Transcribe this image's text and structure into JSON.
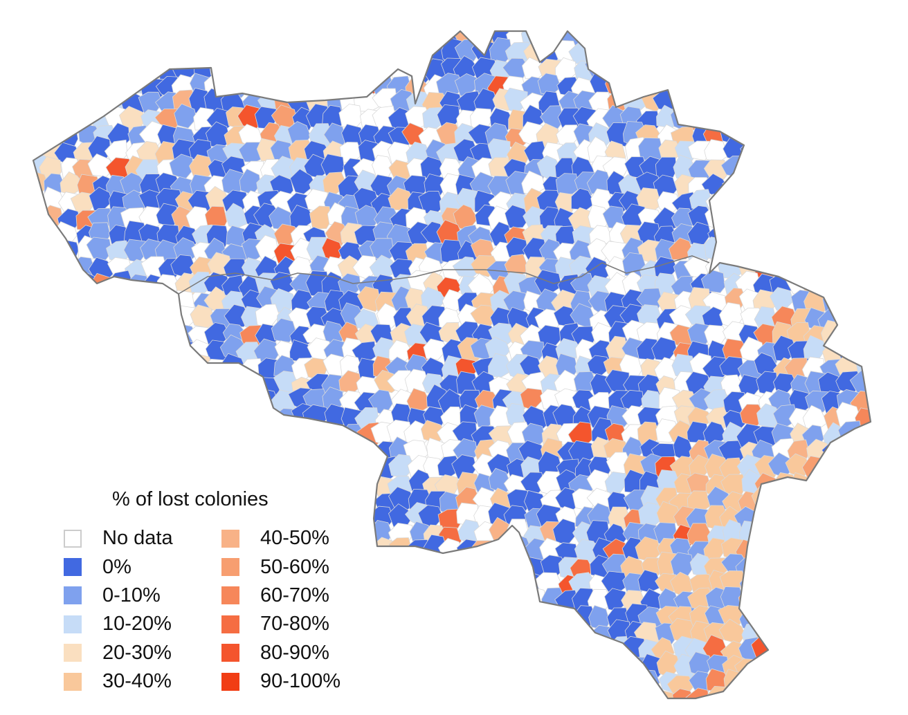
{
  "legend": {
    "title": "% of lost colonies",
    "items": [
      {
        "label": "No data",
        "color": "#ffffff"
      },
      {
        "label": "0%",
        "color": "#4169e1"
      },
      {
        "label": "0-10%",
        "color": "#7fa1ee"
      },
      {
        "label": "10-20%",
        "color": "#c6dcf7"
      },
      {
        "label": "20-30%",
        "color": "#fadfc0"
      },
      {
        "label": "30-40%",
        "color": "#f9c89b"
      },
      {
        "label": "40-50%",
        "color": "#f8b287"
      },
      {
        "label": "50-60%",
        "color": "#f79e70"
      },
      {
        "label": "60-70%",
        "color": "#f6875a"
      },
      {
        "label": "70-80%",
        "color": "#f56d42"
      },
      {
        "label": "80-90%",
        "color": "#f4552d"
      },
      {
        "label": "90-100%",
        "color": "#f13d14"
      }
    ]
  },
  "map": {
    "outline_color": "#7a7a7a",
    "border_color": "#d9d9d9"
  }
}
